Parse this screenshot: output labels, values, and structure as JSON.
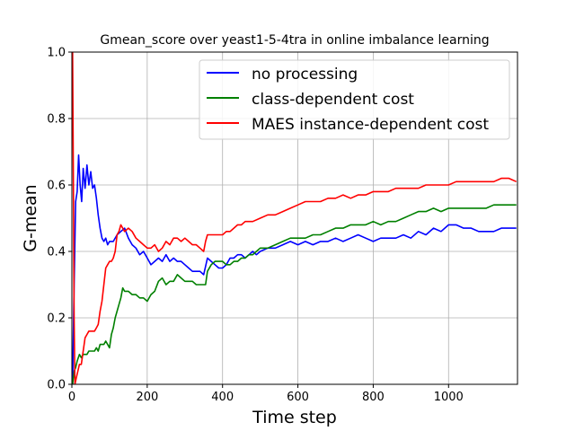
{
  "chart_data": {
    "type": "line",
    "title": "Gmean_score over yeast1-5-4tra in online imbalance learning",
    "xlabel": "Time step",
    "ylabel": "G-mean",
    "xlim": [
      0,
      1183
    ],
    "ylim": [
      0.0,
      1.0
    ],
    "xticks": [
      0,
      200,
      400,
      600,
      800,
      1000
    ],
    "yticks": [
      0.0,
      0.2,
      0.4,
      0.6,
      0.8,
      1.0
    ],
    "xtick_labels": [
      "0",
      "200",
      "400",
      "600",
      "800",
      "1000"
    ],
    "ytick_labels": [
      "0.0",
      "0.2",
      "0.4",
      "0.6",
      "0.8",
      "1.0"
    ],
    "grid": true,
    "legend_position": "top-right",
    "series": [
      {
        "name": "no processing",
        "color": "#0000ff",
        "points": [
          [
            2,
            0.0
          ],
          [
            6,
            0.3
          ],
          [
            10,
            0.55
          ],
          [
            14,
            0.58
          ],
          [
            18,
            0.69
          ],
          [
            22,
            0.6
          ],
          [
            26,
            0.55
          ],
          [
            30,
            0.65
          ],
          [
            35,
            0.59
          ],
          [
            40,
            0.66
          ],
          [
            45,
            0.6
          ],
          [
            50,
            0.64
          ],
          [
            55,
            0.59
          ],
          [
            60,
            0.6
          ],
          [
            65,
            0.56
          ],
          [
            70,
            0.51
          ],
          [
            75,
            0.47
          ],
          [
            80,
            0.44
          ],
          [
            85,
            0.43
          ],
          [
            90,
            0.44
          ],
          [
            95,
            0.42
          ],
          [
            100,
            0.43
          ],
          [
            110,
            0.43
          ],
          [
            120,
            0.45
          ],
          [
            130,
            0.46
          ],
          [
            140,
            0.47
          ],
          [
            150,
            0.44
          ],
          [
            160,
            0.42
          ],
          [
            170,
            0.41
          ],
          [
            180,
            0.39
          ],
          [
            190,
            0.4
          ],
          [
            200,
            0.38
          ],
          [
            210,
            0.36
          ],
          [
            220,
            0.37
          ],
          [
            230,
            0.38
          ],
          [
            240,
            0.37
          ],
          [
            250,
            0.39
          ],
          [
            260,
            0.37
          ],
          [
            270,
            0.38
          ],
          [
            280,
            0.37
          ],
          [
            290,
            0.37
          ],
          [
            300,
            0.36
          ],
          [
            310,
            0.35
          ],
          [
            320,
            0.34
          ],
          [
            330,
            0.34
          ],
          [
            340,
            0.34
          ],
          [
            350,
            0.33
          ],
          [
            360,
            0.38
          ],
          [
            370,
            0.37
          ],
          [
            380,
            0.36
          ],
          [
            390,
            0.35
          ],
          [
            400,
            0.35
          ],
          [
            410,
            0.36
          ],
          [
            420,
            0.38
          ],
          [
            430,
            0.38
          ],
          [
            440,
            0.39
          ],
          [
            450,
            0.39
          ],
          [
            460,
            0.38
          ],
          [
            470,
            0.39
          ],
          [
            480,
            0.4
          ],
          [
            490,
            0.39
          ],
          [
            500,
            0.4
          ],
          [
            520,
            0.41
          ],
          [
            540,
            0.41
          ],
          [
            560,
            0.42
          ],
          [
            580,
            0.43
          ],
          [
            600,
            0.42
          ],
          [
            620,
            0.43
          ],
          [
            640,
            0.42
          ],
          [
            660,
            0.43
          ],
          [
            680,
            0.43
          ],
          [
            700,
            0.44
          ],
          [
            720,
            0.43
          ],
          [
            740,
            0.44
          ],
          [
            760,
            0.45
          ],
          [
            780,
            0.44
          ],
          [
            800,
            0.43
          ],
          [
            820,
            0.44
          ],
          [
            840,
            0.44
          ],
          [
            860,
            0.44
          ],
          [
            880,
            0.45
          ],
          [
            900,
            0.44
          ],
          [
            920,
            0.46
          ],
          [
            940,
            0.45
          ],
          [
            960,
            0.47
          ],
          [
            980,
            0.46
          ],
          [
            1000,
            0.48
          ],
          [
            1020,
            0.48
          ],
          [
            1040,
            0.47
          ],
          [
            1060,
            0.47
          ],
          [
            1080,
            0.46
          ],
          [
            1100,
            0.46
          ],
          [
            1120,
            0.46
          ],
          [
            1140,
            0.47
          ],
          [
            1160,
            0.47
          ],
          [
            1180,
            0.47
          ]
        ]
      },
      {
        "name": "class-dependent cost",
        "color": "#008000",
        "points": [
          [
            2,
            0.0
          ],
          [
            6,
            0.04
          ],
          [
            10,
            0.05
          ],
          [
            14,
            0.07
          ],
          [
            20,
            0.09
          ],
          [
            25,
            0.08
          ],
          [
            30,
            0.09
          ],
          [
            35,
            0.09
          ],
          [
            40,
            0.09
          ],
          [
            45,
            0.1
          ],
          [
            50,
            0.1
          ],
          [
            55,
            0.1
          ],
          [
            60,
            0.1
          ],
          [
            65,
            0.11
          ],
          [
            70,
            0.1
          ],
          [
            75,
            0.12
          ],
          [
            80,
            0.12
          ],
          [
            85,
            0.12
          ],
          [
            90,
            0.13
          ],
          [
            95,
            0.12
          ],
          [
            100,
            0.11
          ],
          [
            105,
            0.15
          ],
          [
            110,
            0.17
          ],
          [
            115,
            0.2
          ],
          [
            120,
            0.22
          ],
          [
            125,
            0.24
          ],
          [
            130,
            0.26
          ],
          [
            135,
            0.29
          ],
          [
            140,
            0.28
          ],
          [
            150,
            0.28
          ],
          [
            160,
            0.27
          ],
          [
            170,
            0.27
          ],
          [
            180,
            0.26
          ],
          [
            190,
            0.26
          ],
          [
            200,
            0.25
          ],
          [
            210,
            0.27
          ],
          [
            220,
            0.28
          ],
          [
            230,
            0.31
          ],
          [
            240,
            0.32
          ],
          [
            250,
            0.3
          ],
          [
            260,
            0.31
          ],
          [
            270,
            0.31
          ],
          [
            280,
            0.33
          ],
          [
            290,
            0.32
          ],
          [
            300,
            0.31
          ],
          [
            310,
            0.31
          ],
          [
            320,
            0.31
          ],
          [
            330,
            0.3
          ],
          [
            340,
            0.3
          ],
          [
            350,
            0.3
          ],
          [
            355,
            0.3
          ],
          [
            360,
            0.34
          ],
          [
            370,
            0.36
          ],
          [
            380,
            0.37
          ],
          [
            390,
            0.37
          ],
          [
            400,
            0.37
          ],
          [
            410,
            0.36
          ],
          [
            420,
            0.36
          ],
          [
            430,
            0.37
          ],
          [
            440,
            0.37
          ],
          [
            450,
            0.38
          ],
          [
            460,
            0.38
          ],
          [
            470,
            0.39
          ],
          [
            480,
            0.39
          ],
          [
            490,
            0.4
          ],
          [
            500,
            0.41
          ],
          [
            520,
            0.41
          ],
          [
            540,
            0.42
          ],
          [
            560,
            0.43
          ],
          [
            580,
            0.44
          ],
          [
            600,
            0.44
          ],
          [
            620,
            0.44
          ],
          [
            640,
            0.45
          ],
          [
            660,
            0.45
          ],
          [
            680,
            0.46
          ],
          [
            700,
            0.47
          ],
          [
            720,
            0.47
          ],
          [
            740,
            0.48
          ],
          [
            760,
            0.48
          ],
          [
            780,
            0.48
          ],
          [
            800,
            0.49
          ],
          [
            820,
            0.48
          ],
          [
            840,
            0.49
          ],
          [
            860,
            0.49
          ],
          [
            880,
            0.5
          ],
          [
            900,
            0.51
          ],
          [
            920,
            0.52
          ],
          [
            940,
            0.52
          ],
          [
            960,
            0.53
          ],
          [
            980,
            0.52
          ],
          [
            1000,
            0.53
          ],
          [
            1020,
            0.53
          ],
          [
            1040,
            0.53
          ],
          [
            1060,
            0.53
          ],
          [
            1080,
            0.53
          ],
          [
            1100,
            0.53
          ],
          [
            1120,
            0.54
          ],
          [
            1140,
            0.54
          ],
          [
            1160,
            0.54
          ],
          [
            1180,
            0.54
          ]
        ]
      },
      {
        "name": "MAES instance-dependent cost",
        "color": "#ff0000",
        "points": [
          [
            2,
            1.0
          ],
          [
            4,
            0.6
          ],
          [
            6,
            0.2
          ],
          [
            8,
            0.0
          ],
          [
            12,
            0.02
          ],
          [
            16,
            0.04
          ],
          [
            20,
            0.06
          ],
          [
            25,
            0.06
          ],
          [
            30,
            0.1
          ],
          [
            35,
            0.14
          ],
          [
            40,
            0.15
          ],
          [
            45,
            0.16
          ],
          [
            50,
            0.16
          ],
          [
            55,
            0.16
          ],
          [
            60,
            0.16
          ],
          [
            65,
            0.17
          ],
          [
            70,
            0.18
          ],
          [
            75,
            0.22
          ],
          [
            80,
            0.25
          ],
          [
            85,
            0.3
          ],
          [
            90,
            0.35
          ],
          [
            95,
            0.36
          ],
          [
            100,
            0.37
          ],
          [
            105,
            0.37
          ],
          [
            110,
            0.38
          ],
          [
            115,
            0.4
          ],
          [
            120,
            0.45
          ],
          [
            125,
            0.46
          ],
          [
            130,
            0.48
          ],
          [
            140,
            0.46
          ],
          [
            150,
            0.47
          ],
          [
            160,
            0.46
          ],
          [
            170,
            0.44
          ],
          [
            180,
            0.43
          ],
          [
            190,
            0.42
          ],
          [
            200,
            0.41
          ],
          [
            210,
            0.41
          ],
          [
            220,
            0.42
          ],
          [
            230,
            0.4
          ],
          [
            240,
            0.41
          ],
          [
            250,
            0.43
          ],
          [
            260,
            0.42
          ],
          [
            270,
            0.44
          ],
          [
            280,
            0.44
          ],
          [
            290,
            0.43
          ],
          [
            300,
            0.44
          ],
          [
            310,
            0.43
          ],
          [
            320,
            0.42
          ],
          [
            330,
            0.42
          ],
          [
            340,
            0.41
          ],
          [
            350,
            0.4
          ],
          [
            355,
            0.43
          ],
          [
            360,
            0.45
          ],
          [
            370,
            0.45
          ],
          [
            380,
            0.45
          ],
          [
            390,
            0.45
          ],
          [
            400,
            0.45
          ],
          [
            410,
            0.46
          ],
          [
            420,
            0.46
          ],
          [
            430,
            0.47
          ],
          [
            440,
            0.48
          ],
          [
            450,
            0.48
          ],
          [
            460,
            0.49
          ],
          [
            480,
            0.49
          ],
          [
            500,
            0.5
          ],
          [
            520,
            0.51
          ],
          [
            540,
            0.51
          ],
          [
            560,
            0.52
          ],
          [
            580,
            0.53
          ],
          [
            600,
            0.54
          ],
          [
            620,
            0.55
          ],
          [
            640,
            0.55
          ],
          [
            660,
            0.55
          ],
          [
            680,
            0.56
          ],
          [
            700,
            0.56
          ],
          [
            720,
            0.57
          ],
          [
            740,
            0.56
          ],
          [
            760,
            0.57
          ],
          [
            780,
            0.57
          ],
          [
            800,
            0.58
          ],
          [
            820,
            0.58
          ],
          [
            840,
            0.58
          ],
          [
            860,
            0.59
          ],
          [
            880,
            0.59
          ],
          [
            900,
            0.59
          ],
          [
            920,
            0.59
          ],
          [
            940,
            0.6
          ],
          [
            960,
            0.6
          ],
          [
            980,
            0.6
          ],
          [
            1000,
            0.6
          ],
          [
            1020,
            0.61
          ],
          [
            1040,
            0.61
          ],
          [
            1060,
            0.61
          ],
          [
            1080,
            0.61
          ],
          [
            1100,
            0.61
          ],
          [
            1120,
            0.61
          ],
          [
            1140,
            0.62
          ],
          [
            1160,
            0.62
          ],
          [
            1180,
            0.61
          ]
        ]
      }
    ]
  }
}
